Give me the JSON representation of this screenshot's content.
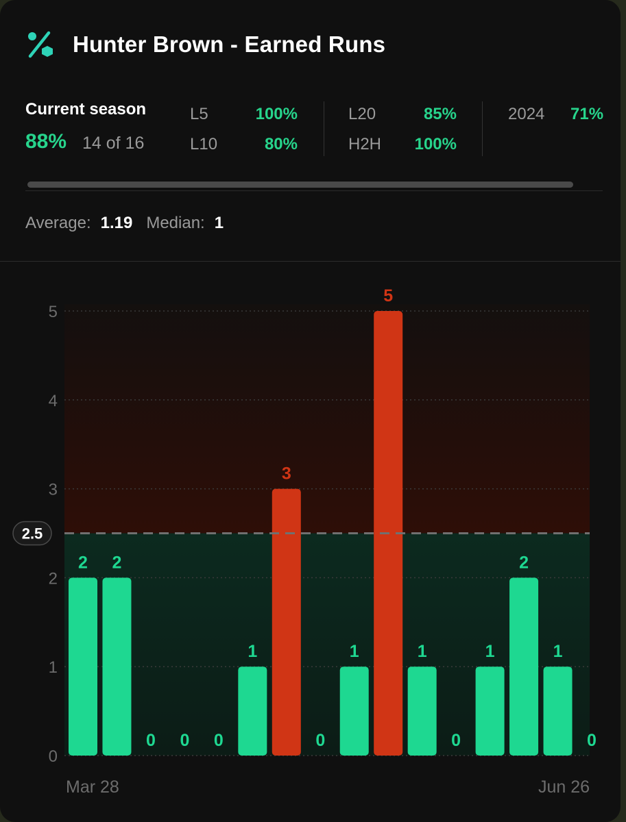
{
  "header": {
    "title": "Hunter Brown - Earned Runs",
    "icon": "percent-icon",
    "accent": "#2ed3b7"
  },
  "stats": {
    "current_season_label": "Current season",
    "current_season_pct": "88%",
    "current_season_count": "14 of 16",
    "items": [
      {
        "label": "L5",
        "value": "100%"
      },
      {
        "label": "L10",
        "value": "80%"
      },
      {
        "label": "L20",
        "value": "85%"
      },
      {
        "label": "H2H",
        "value": "100%"
      },
      {
        "label": "2024",
        "value": "71%"
      }
    ]
  },
  "summary": {
    "average_label": "Average:",
    "average_value": "1.19",
    "median_label": "Median:",
    "median_value": "1"
  },
  "colors": {
    "over": "#d03515",
    "under": "#1ed891",
    "pct_green": "#27d48c",
    "background": "#101010"
  },
  "chart_data": {
    "type": "bar",
    "threshold": 2.5,
    "ylim": [
      0,
      5
    ],
    "y_ticks": [
      0,
      1,
      2,
      3,
      4,
      5
    ],
    "x_start_label": "Mar 28",
    "x_end_label": "Jun 26",
    "values": [
      2,
      2,
      0,
      0,
      0,
      1,
      3,
      0,
      1,
      5,
      1,
      0,
      1,
      2,
      1,
      0
    ],
    "grid": true
  }
}
